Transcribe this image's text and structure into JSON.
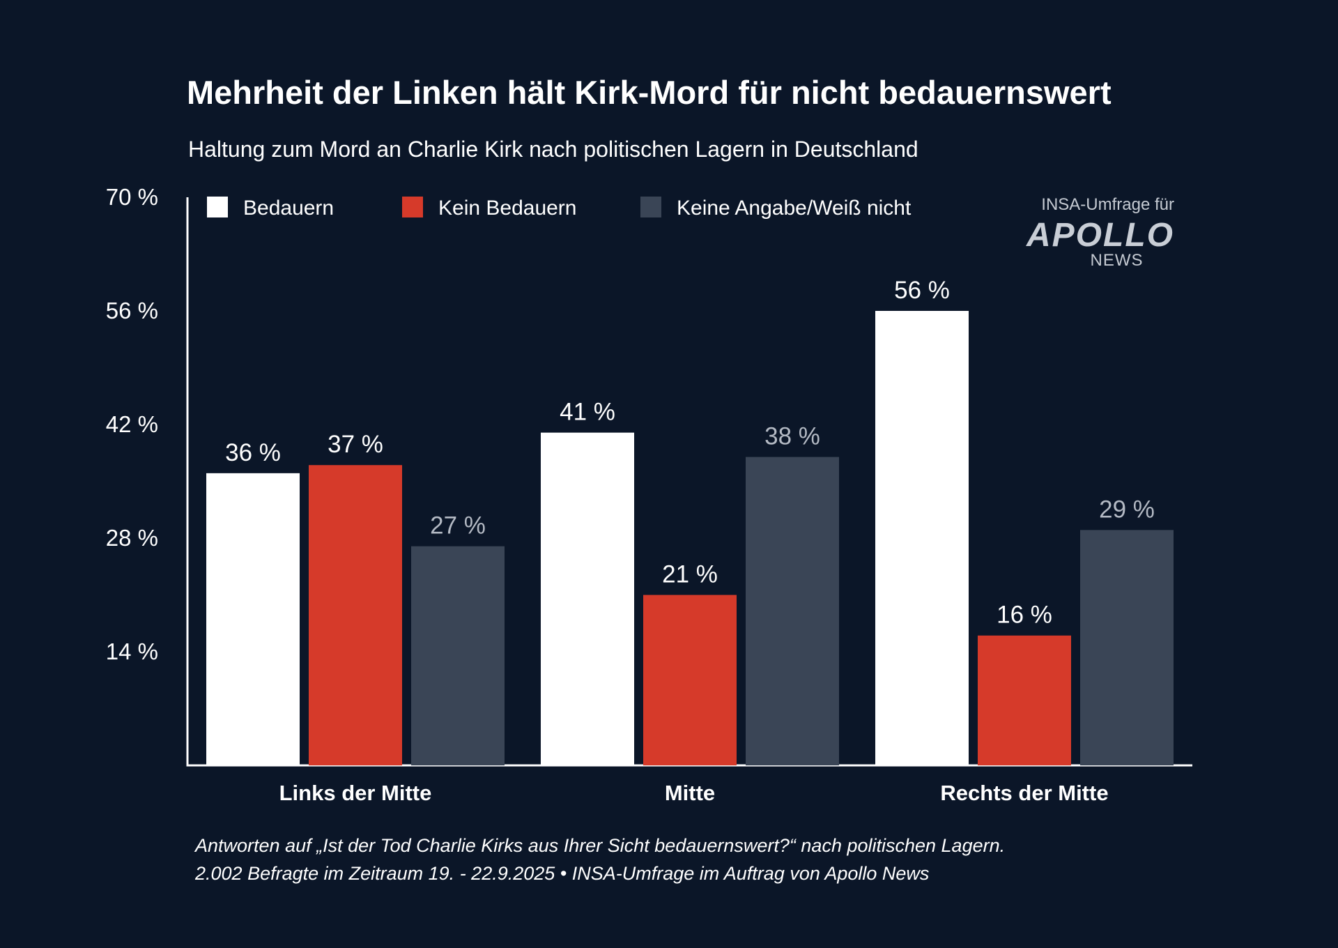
{
  "title": "Mehrheit der Linken hält Kirk-Mord für nicht bedauernswert",
  "subtitle": "Haltung zum Mord an Charlie Kirk nach politischen Lagern in Deutschland",
  "brand": {
    "line1": "INSA-Umfrage für",
    "logo": "APOLLO",
    "sub": "NEWS"
  },
  "footnote": {
    "line1": "Antworten auf „Ist der Tod Charlie Kirks aus Ihrer Sicht bedauernswert?“ nach politischen Lagern.",
    "line2": "2.002 Befragte im Zeitraum 19. - 22.9.2025 • INSA-Umfrage im Auftrag von Apollo News"
  },
  "chart_data": {
    "type": "bar",
    "categories": [
      "Links der Mitte",
      "Mitte",
      "Rechts der Mitte"
    ],
    "series": [
      {
        "name": "Bedauern",
        "values": [
          36,
          41,
          56
        ],
        "color": "#ffffff",
        "label_color": "#ffffff"
      },
      {
        "name": "Kein Bedauern",
        "values": [
          37,
          21,
          16
        ],
        "color": "#d63a2a",
        "label_color": "#ffffff"
      },
      {
        "name": "Keine Angabe/Weiß nicht",
        "values": [
          27,
          38,
          29
        ],
        "color": "#3a4556",
        "label_color": "#b4bac4"
      }
    ],
    "ylim": [
      0,
      70
    ],
    "yticks": [
      14,
      28,
      42,
      56,
      70
    ],
    "ytick_labels": [
      "14 %",
      "28 %",
      "42 %",
      "56 %",
      "70 %"
    ],
    "value_suffix": " %",
    "legend_position": "top",
    "grid": false,
    "axis_color": "#ffffff",
    "background": "#0b1628"
  }
}
